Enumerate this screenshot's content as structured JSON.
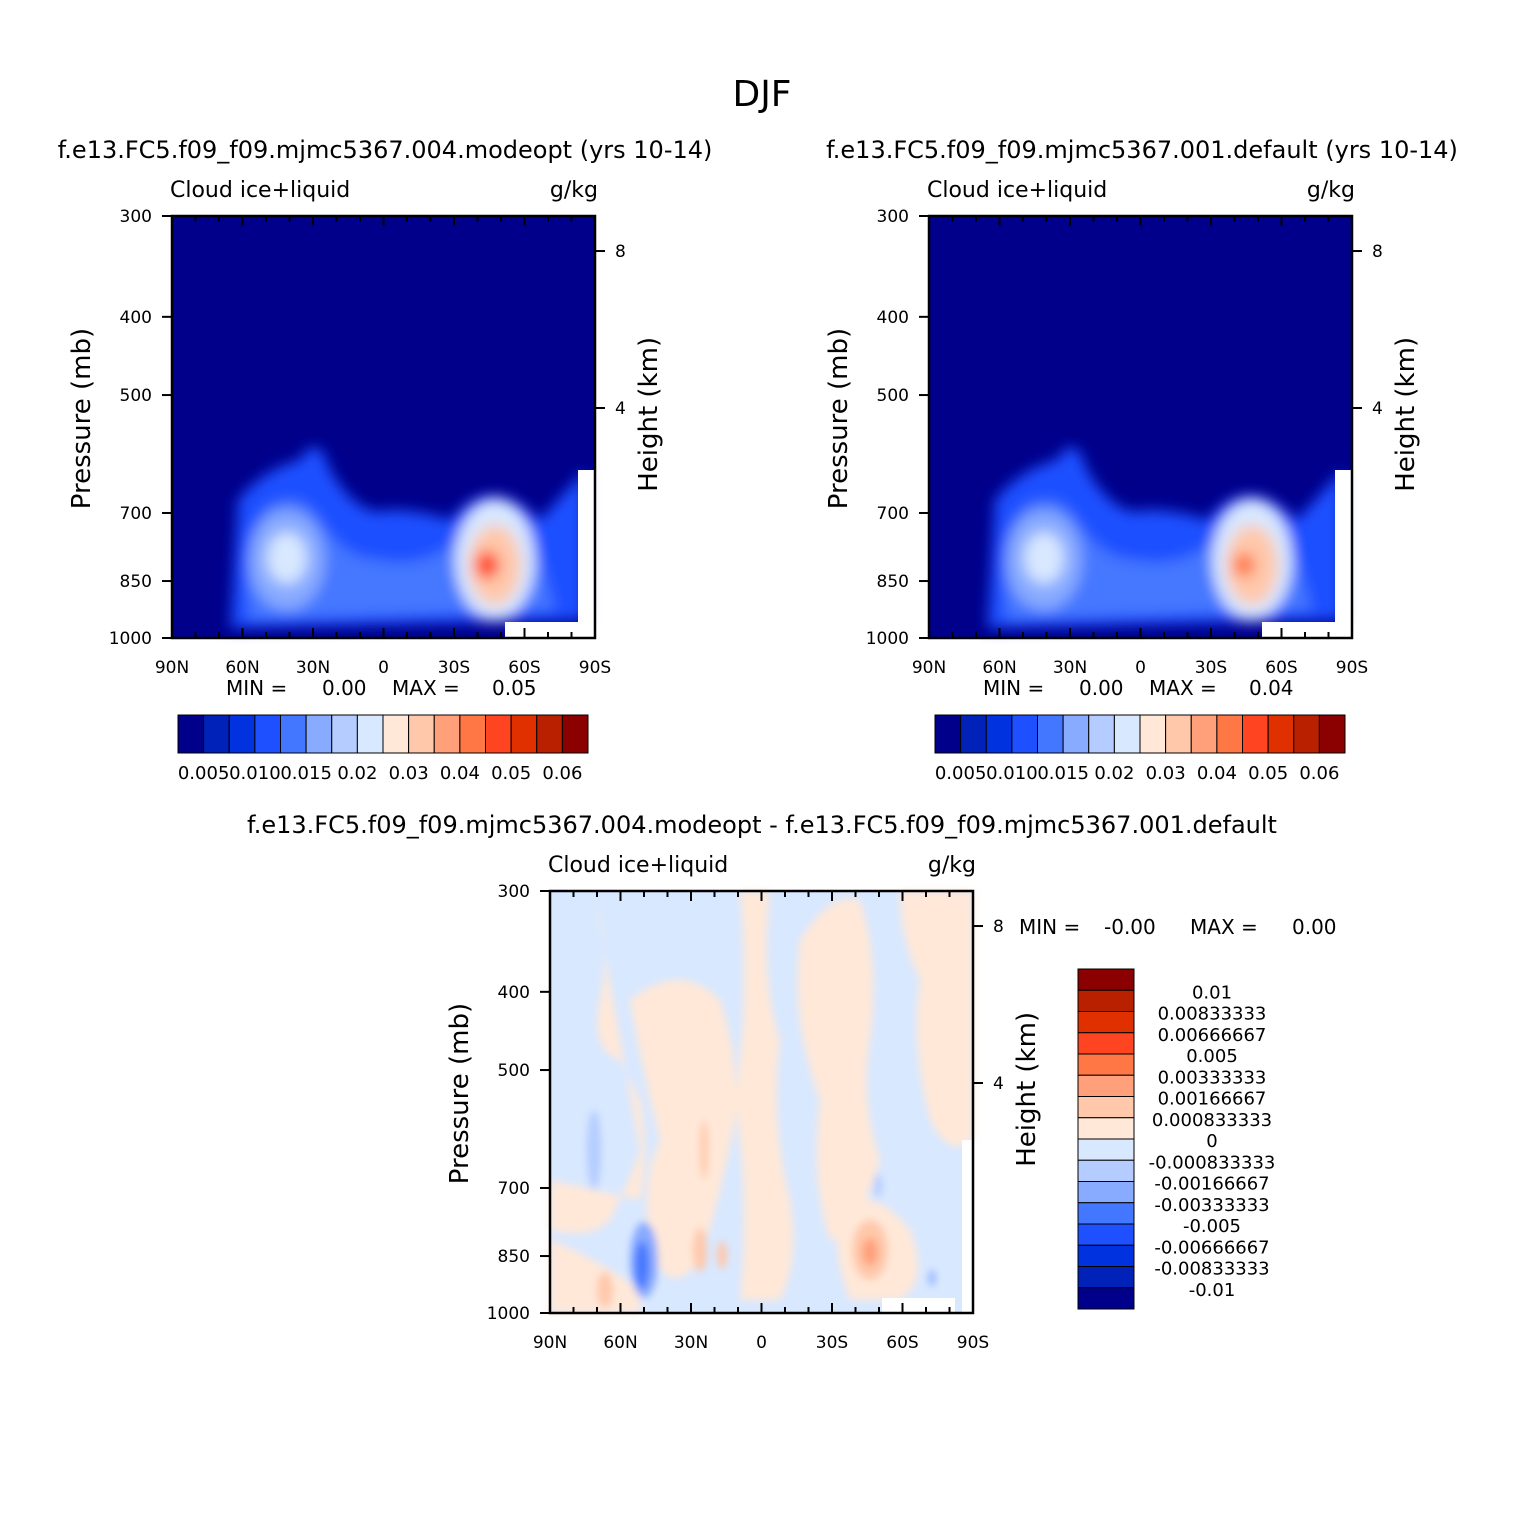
{
  "page_title": "DJF",
  "chart_data": [
    {
      "type": "heatmap",
      "id": "panel_a",
      "title": "f.e13.FC5.f09_f09.mjmc5367.004.modeopt (yrs 10-14)",
      "left_label": "Cloud ice+liquid",
      "right_label": "g/kg",
      "ylabel": "Pressure (mb)",
      "y2label": "Height (km)",
      "x_ticks": [
        "90N",
        "60N",
        "30N",
        "0",
        "30S",
        "60S",
        "90S"
      ],
      "x_values": [
        90,
        60,
        30,
        0,
        -30,
        -60,
        -90
      ],
      "y_ticks": [
        "300",
        "400",
        "500",
        "700",
        "850",
        "1000"
      ],
      "y_values": [
        300,
        400,
        500,
        700,
        850,
        1000
      ],
      "y2_ticks": [
        "8",
        "4"
      ],
      "stats": {
        "min_label": "MIN =",
        "min_value": "0.00",
        "max_label": "MAX =",
        "max_value": "0.05"
      },
      "features": [
        {
          "lat": 40,
          "p": 870,
          "value": 0.025,
          "spread_lat": 14,
          "spread_p": 90
        },
        {
          "lat": -43,
          "p": 870,
          "value": 0.05,
          "spread_lat": 12,
          "spread_p": 80
        }
      ],
      "colorbar": {
        "labels": [
          "0.005",
          "0.010",
          "0.015",
          "0.02",
          "0.03",
          "0.04",
          "0.05",
          "0.06"
        ],
        "colors": [
          "#00008b",
          "#0022b8",
          "#0032e0",
          "#1e50ff",
          "#4477ff",
          "#88aaff",
          "#b4ccff",
          "#d8e8ff",
          "#ffe8d8",
          "#ffc8aa",
          "#ffa07a",
          "#ff7744",
          "#ff4422",
          "#e03000",
          "#b82000",
          "#8b0000"
        ]
      }
    },
    {
      "type": "heatmap",
      "id": "panel_b",
      "title": "f.e13.FC5.f09_f09.mjmc5367.001.default (yrs 10-14)",
      "left_label": "Cloud ice+liquid",
      "right_label": "g/kg",
      "ylabel": "Pressure (mb)",
      "y2label": "Height (km)",
      "x_ticks": [
        "90N",
        "60N",
        "30N",
        "0",
        "30S",
        "60S",
        "90S"
      ],
      "x_values": [
        90,
        60,
        30,
        0,
        -30,
        -60,
        -90
      ],
      "y_ticks": [
        "300",
        "400",
        "500",
        "700",
        "850",
        "1000"
      ],
      "y_values": [
        300,
        400,
        500,
        700,
        850,
        1000
      ],
      "y2_ticks": [
        "8",
        "4"
      ],
      "stats": {
        "min_label": "MIN =",
        "min_value": "0.00",
        "max_label": "MAX =",
        "max_value": "0.04"
      },
      "features": [
        {
          "lat": 40,
          "p": 870,
          "value": 0.025,
          "spread_lat": 14,
          "spread_p": 90
        },
        {
          "lat": -43,
          "p": 870,
          "value": 0.045,
          "spread_lat": 12,
          "spread_p": 80
        }
      ],
      "colorbar": {
        "labels": [
          "0.005",
          "0.010",
          "0.015",
          "0.02",
          "0.03",
          "0.04",
          "0.05",
          "0.06"
        ],
        "colors": [
          "#00008b",
          "#0022b8",
          "#0032e0",
          "#1e50ff",
          "#4477ff",
          "#88aaff",
          "#b4ccff",
          "#d8e8ff",
          "#ffe8d8",
          "#ffc8aa",
          "#ffa07a",
          "#ff7744",
          "#ff4422",
          "#e03000",
          "#b82000",
          "#8b0000"
        ]
      }
    },
    {
      "type": "heatmap",
      "id": "panel_diff",
      "title": "f.e13.FC5.f09_f09.mjmc5367.004.modeopt - f.e13.FC5.f09_f09.mjmc5367.001.default",
      "left_label": "Cloud ice+liquid",
      "right_label": "g/kg",
      "ylabel": "Pressure (mb)",
      "y2label": "Height (km)",
      "x_ticks": [
        "90N",
        "60N",
        "30N",
        "0",
        "30S",
        "60S",
        "90S"
      ],
      "x_values": [
        90,
        60,
        30,
        0,
        -30,
        -60,
        -90
      ],
      "y_ticks": [
        "300",
        "400",
        "500",
        "700",
        "850",
        "1000"
      ],
      "y_values": [
        300,
        400,
        500,
        700,
        850,
        1000
      ],
      "y2_ticks": [
        "8",
        "4"
      ],
      "stats": {
        "min_label": "MIN =",
        "min_value": "-0.00",
        "max_label": "MAX =",
        "max_value": "0.00"
      },
      "colorbar": {
        "labels": [
          "0.01",
          "0.00833333",
          "0.00666667",
          "0.005",
          "0.00333333",
          "0.00166667",
          "0.000833333",
          "0",
          "-0.000833333",
          "-0.00166667",
          "-0.00333333",
          "-0.005",
          "-0.00666667",
          "-0.00833333",
          "-0.01"
        ],
        "colors": [
          "#8b0000",
          "#b82000",
          "#e03000",
          "#ff4422",
          "#ff7744",
          "#ffa07a",
          "#ffc8aa",
          "#ffe8d8",
          "#d8e8ff",
          "#b4ccff",
          "#88aaff",
          "#4477ff",
          "#1e50ff",
          "#0032e0",
          "#0022b8",
          "#00008b"
        ]
      }
    }
  ]
}
